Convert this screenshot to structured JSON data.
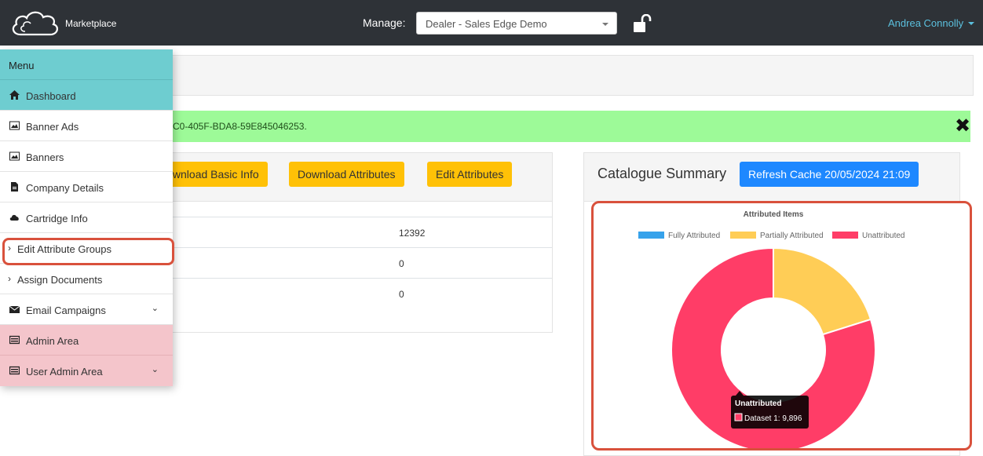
{
  "header": {
    "brand": "Marketplace",
    "manage_label": "Manage:",
    "manage_value": "Dealer - Sales Edge Demo",
    "user_name": "Andrea Connolly"
  },
  "alert": {
    "text": "C0-405F-BDA8-59E845046253.",
    "close": "✖"
  },
  "left_card": {
    "buttons": [
      "Download Basic Info",
      "Download Attributes",
      "Edit Attributes"
    ],
    "rows": [
      "12392",
      "0",
      "0"
    ]
  },
  "catalogue": {
    "title": "Catalogue Summary",
    "refresh_label": "Refresh Cache 20/05/2024 21:09"
  },
  "menu": {
    "title": "Menu",
    "items": [
      {
        "label": "Dashboard",
        "icon": "home-icon"
      },
      {
        "label": "Banner Ads",
        "icon": "image-icon"
      },
      {
        "label": "Banners",
        "icon": "image-icon"
      },
      {
        "label": "Company Details",
        "icon": "document-icon"
      },
      {
        "label": "Cartridge Info",
        "icon": "cloud-icon"
      },
      {
        "label": "Edit Attribute Groups",
        "icon": "chevron-right-icon"
      },
      {
        "label": "Assign Documents",
        "icon": "chevron-right-icon"
      },
      {
        "label": "Email Campaigns",
        "icon": "envelope-icon"
      },
      {
        "label": "Admin Area",
        "icon": "admin-icon"
      },
      {
        "label": "User Admin Area",
        "icon": "admin-icon"
      }
    ]
  },
  "chart_data": {
    "type": "pie",
    "title": "Attributed Items",
    "legend_position": "top",
    "categories": [
      "Fully Attributed",
      "Partially Attributed",
      "Unattributed"
    ],
    "values": [
      0,
      2496,
      9896
    ],
    "colors": [
      "#36a2eb",
      "#ffcd56",
      "#ff3d67"
    ],
    "tooltip": {
      "title": "Unattributed",
      "label": "Dataset 1: 9,896"
    }
  }
}
